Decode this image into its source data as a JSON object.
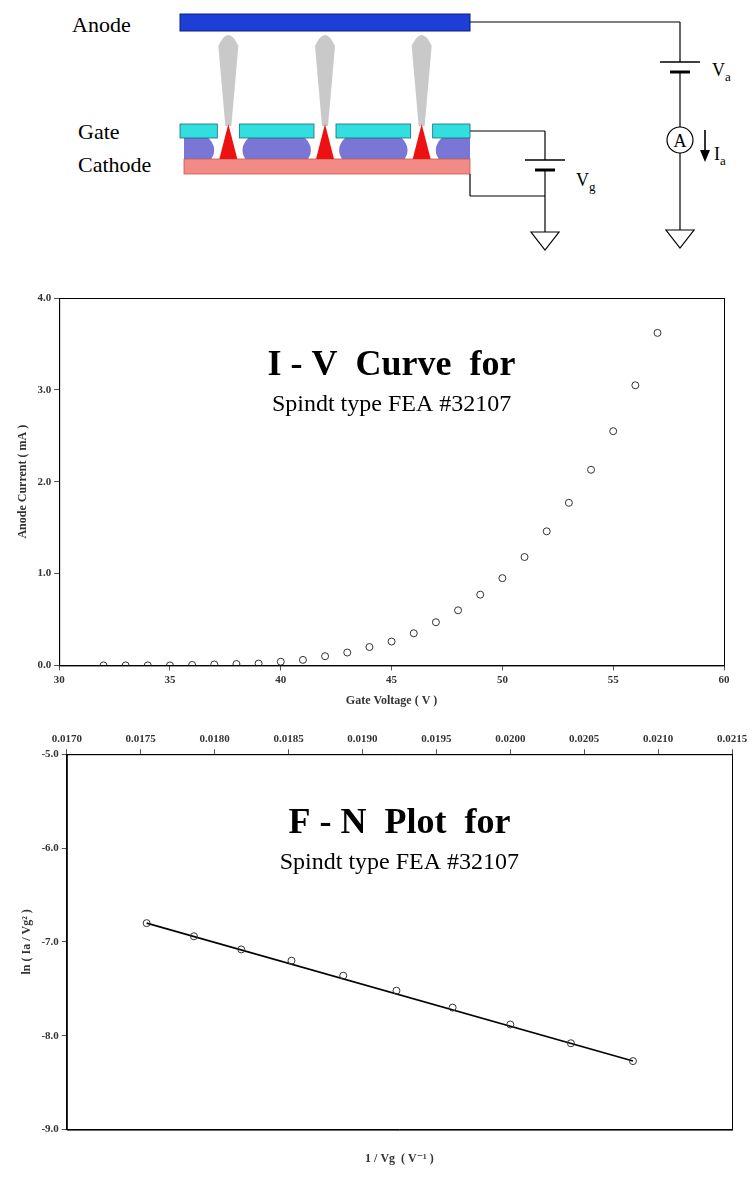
{
  "diagram": {
    "labels": {
      "anode": "Anode",
      "gate": "Gate",
      "cathode": "Cathode"
    },
    "anode_supply": {
      "symbol": "V",
      "subscript": "a"
    },
    "anode_current": {
      "symbol": "I",
      "subscript": "a"
    },
    "ammeter": "A",
    "gate_supply": {
      "symbol": "V",
      "subscript": "g"
    },
    "tips": 3
  },
  "chart_data": [
    {
      "type": "scatter",
      "title": "I - V  Curve  for",
      "subtitle": "Spindt type FEA #32107",
      "x_label": "Gate Voltage ( V )",
      "y_label": "Anode Current ( mA )",
      "x": [
        32,
        33,
        34,
        35,
        36,
        37,
        38,
        39,
        40,
        41,
        42,
        43,
        44,
        45,
        46,
        47,
        48,
        49,
        50,
        51,
        52,
        53,
        54,
        55,
        56,
        57
      ],
      "series": [
        {
          "values": [
            0,
            0,
            0,
            0,
            0.005,
            0.01,
            0.015,
            0.02,
            0.04,
            0.06,
            0.1,
            0.14,
            0.2,
            0.26,
            0.35,
            0.47,
            0.6,
            0.77,
            0.95,
            1.18,
            1.46,
            1.77,
            2.13,
            2.55,
            3.05,
            3.62
          ],
          "color": "#333333",
          "marker": "open circle"
        }
      ],
      "xlim": [
        30,
        60
      ],
      "xticks": [
        30,
        35,
        40,
        45,
        50,
        55,
        60
      ],
      "ylim": [
        0,
        4
      ],
      "yticks": [
        {
          "value": 0,
          "label": "0.0"
        },
        {
          "value": 1,
          "label": "1.0"
        },
        {
          "value": 2,
          "label": "2.0"
        },
        {
          "value": 3,
          "label": "3.0"
        },
        {
          "value": 4,
          "label": "4.0"
        }
      ],
      "grid": false
    },
    {
      "type": "scatter",
      "title": "F - N  Plot  for",
      "subtitle": "Spindt type FEA #32107",
      "x_label": "1 / Vg  ( V⁻¹ )",
      "y_label": "ln ( Ia / Vg² )",
      "series": [
        {
          "x": [
            0.01754,
            0.01786,
            0.01818,
            0.01852,
            0.01887,
            0.01923,
            0.01961,
            0.02,
            0.02041,
            0.02083
          ],
          "values": [
            -6.8,
            -6.94,
            -7.08,
            -7.2,
            -7.36,
            -7.52,
            -7.7,
            -7.88,
            -8.08,
            -8.27
          ],
          "color": "#333333",
          "marker": "open circle"
        },
        {
          "type": "line",
          "x": [
            0.01754,
            0.02083
          ],
          "values": [
            -6.8,
            -8.27
          ],
          "color": "#000000",
          "line_style": "solid",
          "marker": "none"
        }
      ],
      "xlim": [
        0.017,
        0.0215
      ],
      "xticks": [
        {
          "value": 0.017,
          "label": "0.0170"
        },
        {
          "value": 0.0175,
          "label": "0.0175"
        },
        {
          "value": 0.018,
          "label": "0.0180"
        },
        {
          "value": 0.0185,
          "label": "0.0185"
        },
        {
          "value": 0.019,
          "label": "0.0190"
        },
        {
          "value": 0.0195,
          "label": "0.0195"
        },
        {
          "value": 0.02,
          "label": "0.0200"
        },
        {
          "value": 0.0205,
          "label": "0.0205"
        },
        {
          "value": 0.021,
          "label": "0.0210"
        },
        {
          "value": 0.0215,
          "label": "0.0215"
        }
      ],
      "ylim": [
        -9,
        -5
      ],
      "yticks": [
        {
          "value": -9,
          "label": "-9.0"
        },
        {
          "value": -8,
          "label": "-8.0"
        },
        {
          "value": -7,
          "label": "-7.0"
        },
        {
          "value": -6,
          "label": "-6.0"
        },
        {
          "value": -5,
          "label": "-5.0"
        }
      ],
      "grid": false
    }
  ]
}
